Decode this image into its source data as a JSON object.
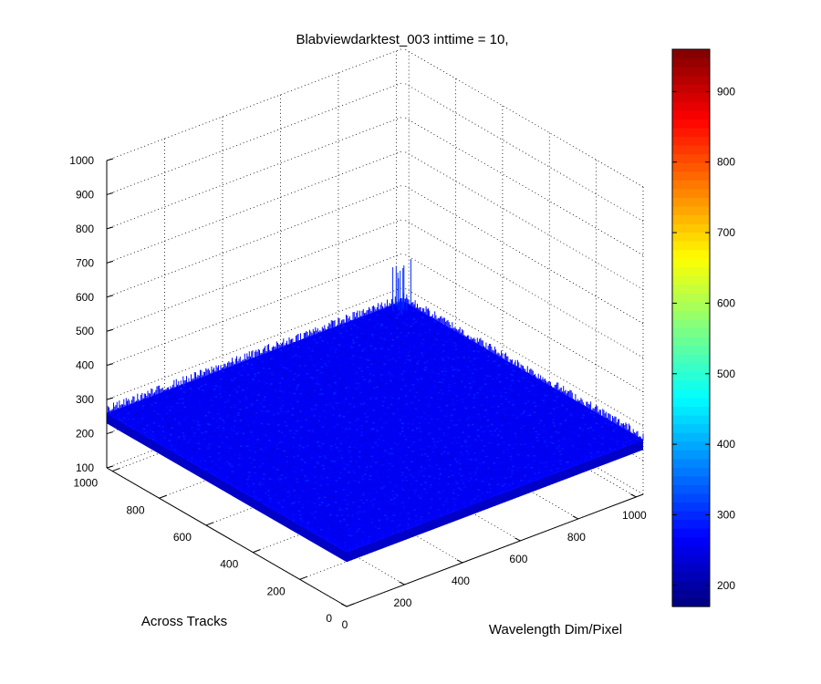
{
  "chart_data": {
    "type": "surface",
    "title": "Blabviewdarktest_003 inttime = 10,",
    "xlabel": "Wavelength Dim/Pixel",
    "ylabel": "Across Tracks",
    "zlabel": "",
    "xlim": [
      0,
      1024
    ],
    "ylim": [
      0,
      1024
    ],
    "zlim": [
      100,
      1000
    ],
    "xticks": [
      "0",
      "200",
      "400",
      "600",
      "800",
      "1000"
    ],
    "yticks": [
      "0",
      "200",
      "400",
      "600",
      "800",
      "1000"
    ],
    "zticks": [
      "100",
      "200",
      "300",
      "400",
      "500",
      "600",
      "700",
      "800",
      "900",
      "1000"
    ],
    "grid": true,
    "surface": {
      "baseline_value": 260,
      "noise_range": [
        210,
        320
      ],
      "max_spike": 380,
      "colormap": "jet"
    },
    "colorbar": {
      "range": [
        170,
        960
      ],
      "ticks": [
        "200",
        "300",
        "400",
        "500",
        "600",
        "700",
        "800",
        "900"
      ],
      "colormap": "jet"
    }
  }
}
